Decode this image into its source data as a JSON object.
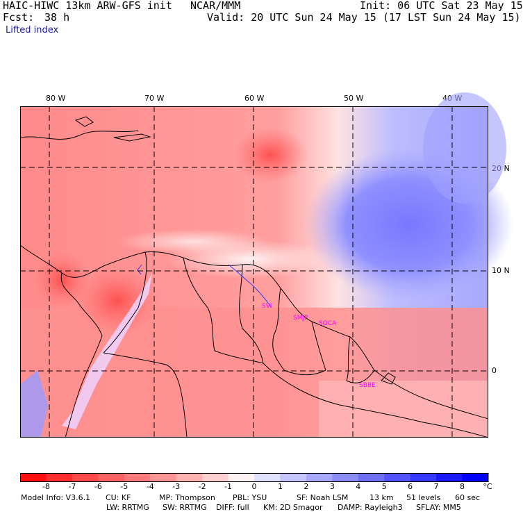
{
  "header": {
    "model": "HAIC-HIWC 13km ARW-GFS init",
    "org": "NCAR/MMM",
    "init": "Init: 06 UTC Sat 23 May 15",
    "fcst_label": "Fcst:",
    "fcst_value": "38 h",
    "valid": "Valid: 20 UTC Sun 24 May 15 (17 LST Sun 24 May 15)",
    "field": "Lifted index"
  },
  "map": {
    "lon_labels": [
      "80 W",
      "70 W",
      "60 W",
      "50 W",
      "40 W"
    ],
    "lat_labels": [
      "20 N",
      "10 N",
      "0"
    ],
    "cities": [
      "SVI",
      "SMJP",
      "SOCA",
      "SBBE"
    ]
  },
  "colorbar": {
    "unit": "°C",
    "tick_labels": [
      "-8",
      "-7",
      "-6",
      "-5",
      "-4",
      "-3",
      "-2",
      "-1",
      "0",
      "1",
      "2",
      "3",
      "4",
      "5",
      "6",
      "7",
      "8"
    ],
    "colors": [
      "#ff1010",
      "#ff2f2f",
      "#ff4a4a",
      "#ff6262",
      "#ff7b7b",
      "#ff9696",
      "#ffb2b2",
      "#ffd0d0",
      "#fff2f2",
      "#e0e0ff",
      "#c4c4ff",
      "#a8a8ff",
      "#8c8cff",
      "#7070ff",
      "#5454ff",
      "#3838ff",
      "#1a1aff",
      "#0000ff"
    ]
  },
  "footer": {
    "model_info": "Model Info: V3.6.1",
    "cu": "CU: KF",
    "mp": "MP: Thompson",
    "pbl": "PBL: YSU",
    "sf": "SF: Noah LSM",
    "res": "13 km",
    "levels": "51 levels",
    "dt": "60 sec",
    "lw": "LW: RRTMG",
    "sw": "SW: RRTMG",
    "diff": "DIFF: full",
    "km": "KM: 2D Smagor",
    "damp": "DAMP: Rayleigh3",
    "sflay": "SFLAY: MM5"
  }
}
